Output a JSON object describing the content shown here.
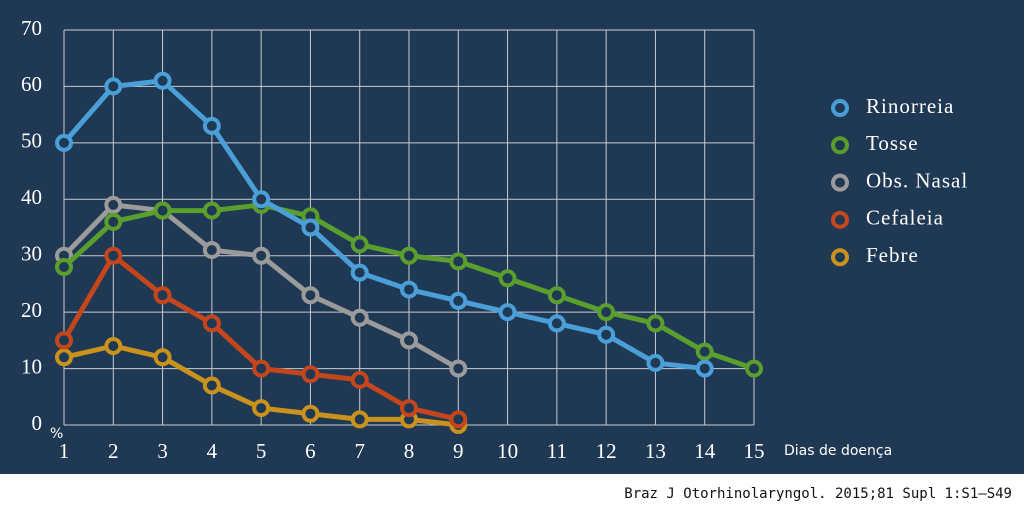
{
  "chart_data": {
    "type": "line",
    "x": [
      1,
      2,
      3,
      4,
      5,
      6,
      7,
      8,
      9,
      10,
      11,
      12,
      13,
      14,
      15
    ],
    "series": [
      {
        "name": "Rinorreia",
        "color": "#4a9fd8",
        "values": [
          50,
          60,
          61,
          53,
          40,
          35,
          27,
          24,
          22,
          20,
          18,
          16,
          11,
          10,
          null
        ]
      },
      {
        "name": "Tosse",
        "color": "#5a9e2e",
        "values": [
          28,
          36,
          38,
          38,
          39,
          37,
          32,
          30,
          29,
          26,
          23,
          20,
          18,
          13,
          10
        ]
      },
      {
        "name": "Obs. Nasal",
        "color": "#9b9b9b",
        "values": [
          30,
          39,
          38,
          31,
          30,
          23,
          19,
          15,
          10,
          null,
          null,
          null,
          null,
          null,
          null
        ]
      },
      {
        "name": "Cefaleia",
        "color": "#c4461c",
        "values": [
          15,
          30,
          23,
          18,
          10,
          9,
          8,
          3,
          1,
          null,
          null,
          null,
          null,
          null,
          null
        ]
      },
      {
        "name": "Febre",
        "color": "#c8921c",
        "values": [
          12,
          14,
          12,
          7,
          3,
          2,
          1,
          1,
          0,
          null,
          null,
          null,
          null,
          null,
          null
        ]
      }
    ],
    "xlim": [
      1,
      15
    ],
    "xticks": [
      1,
      2,
      3,
      4,
      5,
      6,
      7,
      8,
      9,
      10,
      11,
      12,
      13,
      14,
      15
    ],
    "ylim": [
      0,
      70
    ],
    "yticks": [
      0,
      10,
      20,
      30,
      40,
      50,
      60,
      70
    ],
    "x_label": "Dias de doença",
    "y_label": "%",
    "grid": true
  },
  "caption": "Braz J Otorhinolaryngol. 2015;81 Supl 1:S1–S49"
}
